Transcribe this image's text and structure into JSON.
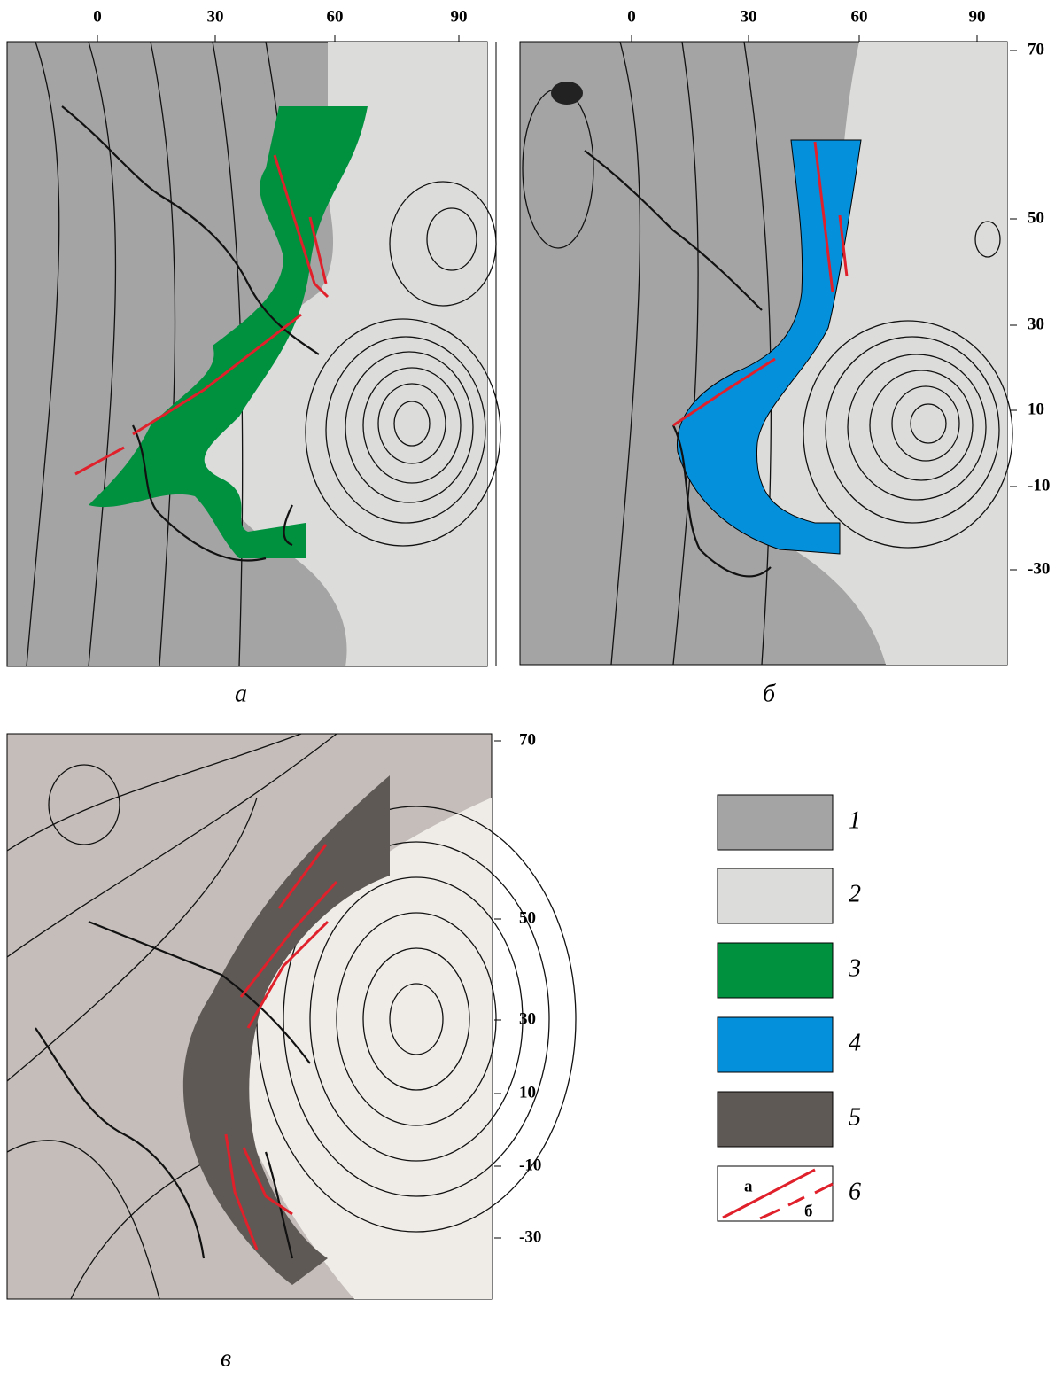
{
  "panels": [
    {
      "caption": "а",
      "top_ticks": [
        "0",
        "30",
        "60",
        "90"
      ]
    },
    {
      "caption": "б",
      "top_ticks": [
        "0",
        "30",
        "60",
        "90"
      ],
      "right_ticks": [
        "70",
        "50",
        "30",
        "10",
        "-10",
        "-30"
      ]
    },
    {
      "caption": "в",
      "right_ticks": [
        "70",
        "50",
        "30",
        "10",
        "-10",
        "-30"
      ]
    }
  ],
  "legend": {
    "items": [
      {
        "label": "1"
      },
      {
        "label": "2"
      },
      {
        "label": "3"
      },
      {
        "label": "4"
      },
      {
        "label": "5"
      },
      {
        "label": "6",
        "sub_a": "а",
        "sub_b": "б"
      }
    ]
  }
}
